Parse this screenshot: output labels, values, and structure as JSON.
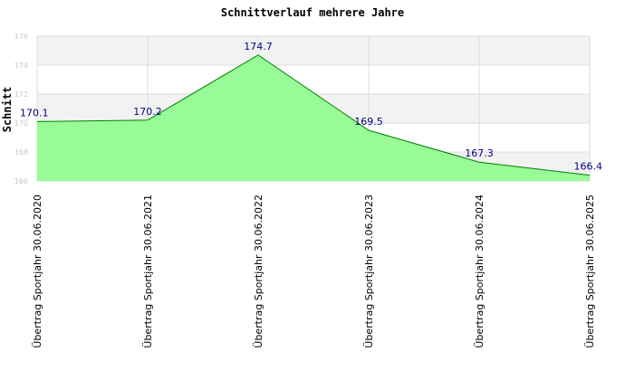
{
  "chart_data": {
    "type": "area",
    "title": "Schnittverlauf mehrere Jahre",
    "ylabel": "Schnitt",
    "xlabel": "",
    "categories": [
      "Übertrag Sportjahr 30.06.2020",
      "Übertrag Sportjahr 30.06.2021",
      "Übertrag Sportjahr 30.06.2022",
      "Übertrag Sportjahr 30.06.2023",
      "Übertrag Sportjahr 30.06.2024",
      "Übertrag Sportjahr 30.06.2025"
    ],
    "values": [
      170.1,
      170.2,
      174.7,
      169.5,
      167.3,
      166.4
    ],
    "data_labels": [
      "170.1",
      "170.2",
      "174.7",
      "169.5",
      "167.3",
      "166.4"
    ],
    "ylim": [
      166,
      176
    ],
    "yticks": [
      "166",
      "168",
      "170",
      "172",
      "174",
      "176"
    ],
    "grid": true,
    "legend": "none",
    "colors": {
      "fill": "#98fb98",
      "line": "#008000",
      "band": "#f2f2f2",
      "grid": "#dddddd",
      "label": "#000080"
    }
  }
}
